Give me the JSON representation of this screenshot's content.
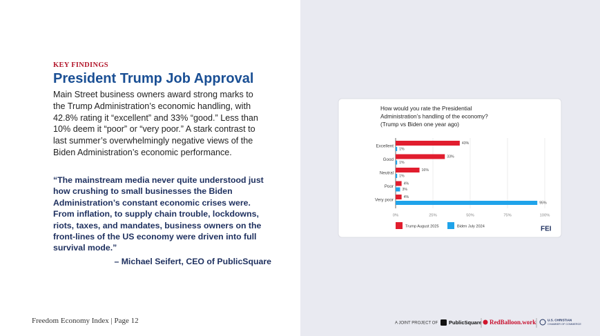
{
  "header": {
    "eyebrow": "KEY FINDINGS",
    "title": "President Trump Job Approval"
  },
  "body": {
    "lines": [
      "Main Street business owners award strong marks to",
      "the Trump Administration’s economic handling, with",
      "42.8% rating it “excellent” and 33% “good.” Less than",
      "10% deem it “poor” or “very poor.” A stark contrast to",
      "last summer’s overwhelmingly negative views of the",
      "Biden Administration’s economic performance."
    ]
  },
  "quote": {
    "lines": [
      "“The mainstream media never quite understood just",
      "how crushing to small businesses the Biden",
      "Administration’s constant economic crises were.",
      "From inflation, to supply chain trouble, lockdowns,",
      "riots, taxes, and mandates, business owners on the",
      "front-lines of the US economy were driven into full",
      "survival mode.”"
    ],
    "attribution": "– Michael Seifert, CEO of PublicSquare"
  },
  "chart_data": {
    "type": "bar",
    "orientation": "horizontal",
    "title": [
      "How would you rate the Presidential",
      "Administration’s handling of the economy?"
    ],
    "subtitle": "(Trump vs Biden one year ago)",
    "categories": [
      "Excellent",
      "Good",
      "Neutral",
      "Poor",
      "Very poor"
    ],
    "series": [
      {
        "name": "Trump August 2025",
        "color": "#e11d2e",
        "values": [
          43,
          33,
          16,
          4,
          4
        ],
        "value_labels": [
          "43%",
          "33%",
          "16%",
          "4%",
          "4%"
        ]
      },
      {
        "name": "Biden July 2024",
        "color": "#1fa3ea",
        "values": [
          1,
          1,
          1,
          3,
          95
        ],
        "value_labels": [
          "1%",
          "1%",
          "1%",
          "3%",
          "95%"
        ]
      }
    ],
    "xlim": [
      0,
      100
    ],
    "xticks": [
      {
        "value": 0,
        "label": "0%"
      },
      {
        "value": 25,
        "label": "25%"
      },
      {
        "value": 50,
        "label": "50%"
      },
      {
        "value": 75,
        "label": "75%"
      },
      {
        "value": 100,
        "label": "100%"
      }
    ],
    "grid": true,
    "legend": "bottom",
    "logo": "FEI"
  },
  "footer": {
    "left": "Freedom Economy Index | Page 12",
    "joint": "A JOINT PROJECT OF",
    "partners": [
      "PublicSquare",
      "RedBalloon.work",
      "U.S. CHRISTIAN",
      "CHAMBER OF COMMERCE"
    ]
  }
}
